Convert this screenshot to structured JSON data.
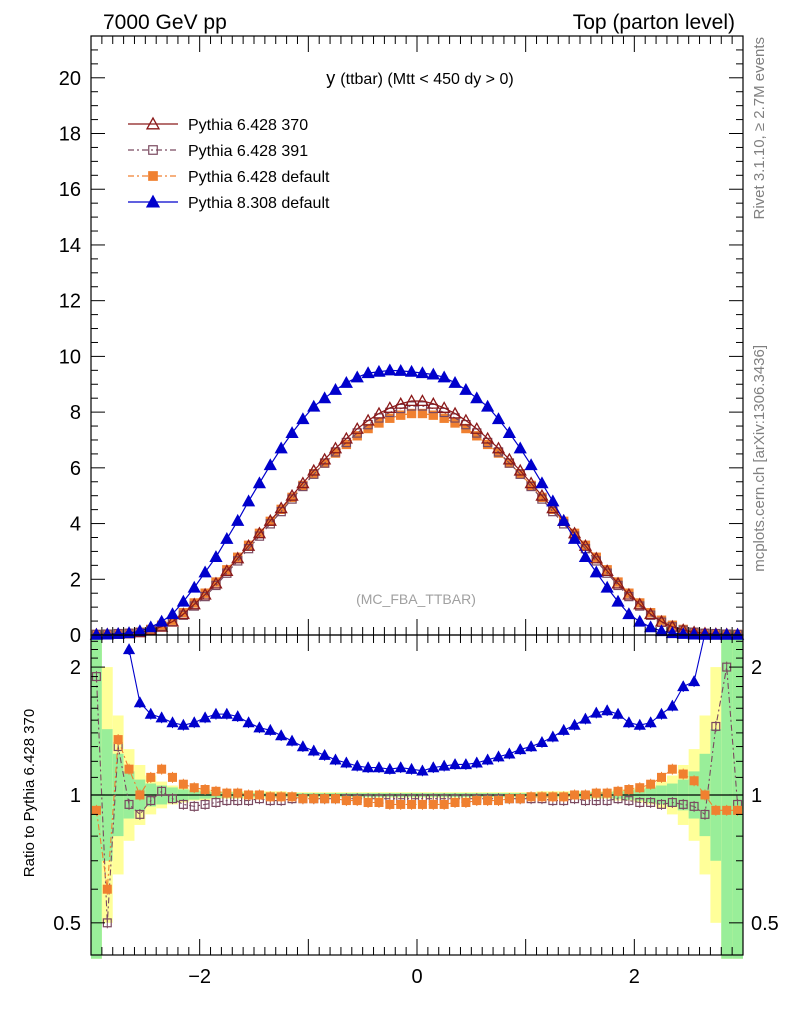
{
  "header": {
    "left": "7000 GeV pp",
    "right": "Top (parton level)"
  },
  "side_labels": {
    "rivet": "Rivet 3.1.10, ≥ 2.7M events",
    "mcplots": "mcplots.cern.ch [arXiv:1306.3436]"
  },
  "chart_data": {
    "type": "line",
    "title_main": "y",
    "title_rest": "(ttbar) (Mtt < 450 dy > 0)",
    "watermark": "(MC_FBA_TTBAR)",
    "ylabel_ratio": "Ratio to Pythia 6.428 370",
    "grid": false,
    "legend_position": "top-left",
    "xlim": [
      -3.0,
      3.0
    ],
    "ylim_main": [
      0,
      21.5
    ],
    "ylim_ratio": [
      0.42,
      2.38
    ],
    "ratio_log_scale": true,
    "main_yticks": [
      "0",
      "2",
      "4",
      "6",
      "8",
      "10",
      "12",
      "14",
      "16",
      "18",
      "20"
    ],
    "ratio_yticks": [
      "0.5",
      "1",
      "2"
    ],
    "xticks": [
      "−2",
      "0",
      "2"
    ],
    "x": [
      -2.95,
      -2.85,
      -2.75,
      -2.65,
      -2.55,
      -2.45,
      -2.35,
      -2.25,
      -2.15,
      -2.05,
      -1.95,
      -1.85,
      -1.75,
      -1.65,
      -1.55,
      -1.45,
      -1.35,
      -1.25,
      -1.15,
      -1.05,
      -0.95,
      -0.85,
      -0.75,
      -0.65,
      -0.55,
      -0.45,
      -0.35,
      -0.25,
      -0.15,
      -0.05,
      0.05,
      0.15,
      0.25,
      0.35,
      0.45,
      0.55,
      0.65,
      0.75,
      0.85,
      0.95,
      1.05,
      1.15,
      1.25,
      1.35,
      1.45,
      1.55,
      1.65,
      1.75,
      1.85,
      1.95,
      2.05,
      2.15,
      2.25,
      2.35,
      2.45,
      2.55,
      2.65,
      2.75,
      2.85,
      2.95
    ],
    "series": [
      {
        "name": "Pythia 6.428 370",
        "color": "#8b1a1a",
        "marker": "open-triangle",
        "values": [
          0.02,
          0.03,
          0.04,
          0.06,
          0.1,
          0.18,
          0.3,
          0.48,
          0.75,
          1.1,
          1.45,
          1.85,
          2.3,
          2.75,
          3.2,
          3.65,
          4.1,
          4.55,
          5.0,
          5.45,
          5.9,
          6.3,
          6.7,
          7.05,
          7.4,
          7.7,
          7.95,
          8.15,
          8.3,
          8.4,
          8.4,
          8.3,
          8.15,
          7.95,
          7.7,
          7.4,
          7.05,
          6.7,
          6.3,
          5.9,
          5.45,
          5.0,
          4.55,
          4.1,
          3.65,
          3.2,
          2.75,
          2.3,
          1.85,
          1.45,
          1.1,
          0.75,
          0.48,
          0.3,
          0.18,
          0.1,
          0.06,
          0.04,
          0.03,
          0.02
        ]
      },
      {
        "name": "Pythia 6.428 391",
        "color": "#7a4a60",
        "marker": "open-square",
        "values": [
          0.02,
          0.03,
          0.05,
          0.06,
          0.09,
          0.17,
          0.31,
          0.48,
          0.71,
          1.04,
          1.38,
          1.78,
          2.22,
          2.66,
          3.1,
          3.55,
          3.99,
          4.43,
          4.88,
          5.33,
          5.77,
          6.17,
          6.57,
          6.91,
          7.25,
          7.55,
          7.79,
          7.99,
          8.13,
          8.22,
          8.22,
          8.13,
          7.99,
          7.79,
          7.55,
          7.25,
          6.91,
          6.57,
          6.17,
          5.77,
          5.33,
          4.88,
          4.43,
          3.99,
          3.55,
          3.1,
          2.66,
          2.22,
          1.78,
          1.38,
          1.04,
          0.71,
          0.46,
          0.29,
          0.17,
          0.1,
          0.06,
          0.05,
          0.03,
          0.02
        ]
      },
      {
        "name": "Pythia 6.428 default",
        "color": "#f08030",
        "marker": "filled-square",
        "values": [
          0.02,
          0.03,
          0.04,
          0.06,
          0.1,
          0.2,
          0.35,
          0.53,
          0.8,
          1.15,
          1.5,
          1.9,
          2.34,
          2.79,
          3.22,
          3.65,
          4.08,
          4.51,
          4.94,
          5.37,
          5.79,
          6.17,
          6.53,
          6.84,
          7.15,
          7.41,
          7.61,
          7.78,
          7.89,
          7.95,
          7.95,
          7.89,
          7.78,
          7.61,
          7.41,
          7.15,
          6.84,
          6.53,
          6.17,
          5.79,
          5.37,
          4.94,
          4.51,
          4.08,
          3.65,
          3.22,
          2.79,
          2.34,
          1.9,
          1.5,
          1.15,
          0.8,
          0.53,
          0.35,
          0.2,
          0.1,
          0.06,
          0.04,
          0.03,
          0.02
        ]
      },
      {
        "name": "Pythia 8.308 default",
        "color": "#0000cc",
        "marker": "filled-triangle",
        "values": [
          0.01,
          0.02,
          0.04,
          0.07,
          0.14,
          0.28,
          0.48,
          0.75,
          1.2,
          1.7,
          2.25,
          2.8,
          3.45,
          4.1,
          4.8,
          5.45,
          6.1,
          6.7,
          7.25,
          7.75,
          8.2,
          8.5,
          8.8,
          9.05,
          9.25,
          9.4,
          9.45,
          9.5,
          9.48,
          9.45,
          9.4,
          9.35,
          9.25,
          9.05,
          8.8,
          8.5,
          8.2,
          7.75,
          7.25,
          6.7,
          6.1,
          5.45,
          4.8,
          4.1,
          3.45,
          2.8,
          2.25,
          1.7,
          1.2,
          0.75,
          0.48,
          0.28,
          0.14,
          0.07,
          0.04,
          0.02,
          0.01,
          0.01,
          0.01,
          0.01
        ]
      }
    ],
    "ratio_series": [
      {
        "name": "Pythia 6.428 391",
        "values": [
          1.9,
          0.5,
          1.3,
          0.95,
          0.9,
          0.97,
          1.02,
          0.98,
          0.95,
          0.94,
          0.95,
          0.96,
          0.97,
          0.97,
          0.97,
          0.98,
          0.97,
          0.97,
          0.98,
          0.98,
          0.98,
          0.98,
          0.98,
          0.98,
          0.98,
          0.98,
          0.98,
          0.98,
          0.98,
          0.98,
          0.98,
          0.98,
          0.98,
          0.98,
          0.98,
          0.98,
          0.98,
          0.98,
          0.98,
          0.98,
          0.98,
          0.98,
          0.97,
          0.97,
          0.98,
          0.97,
          0.97,
          0.97,
          0.98,
          0.97,
          0.96,
          0.96,
          0.95,
          0.96,
          0.95,
          0.94,
          0.9,
          1.45,
          2.0,
          0.95
        ]
      },
      {
        "name": "Pythia 6.428 default",
        "values": [
          0.92,
          0.6,
          1.35,
          1.15,
          1.0,
          1.1,
          1.15,
          1.1,
          1.06,
          1.04,
          1.03,
          1.02,
          1.01,
          1.01,
          1.0,
          1.0,
          0.99,
          0.99,
          0.99,
          0.98,
          0.98,
          0.98,
          0.98,
          0.97,
          0.97,
          0.96,
          0.96,
          0.95,
          0.95,
          0.95,
          0.95,
          0.95,
          0.95,
          0.96,
          0.96,
          0.97,
          0.97,
          0.97,
          0.98,
          0.98,
          0.99,
          0.99,
          0.99,
          0.99,
          1.0,
          1.0,
          1.01,
          1.01,
          1.02,
          1.03,
          1.04,
          1.06,
          1.1,
          1.15,
          1.12,
          1.08,
          1.0,
          0.92,
          0.92,
          0.92
        ]
      },
      {
        "name": "Pythia 8.308 default",
        "values": [
          null,
          null,
          null,
          2.2,
          1.65,
          1.55,
          1.52,
          1.48,
          1.46,
          1.48,
          1.52,
          1.55,
          1.55,
          1.53,
          1.48,
          1.44,
          1.42,
          1.38,
          1.34,
          1.3,
          1.27,
          1.24,
          1.21,
          1.19,
          1.17,
          1.16,
          1.16,
          1.15,
          1.16,
          1.15,
          1.14,
          1.16,
          1.17,
          1.18,
          1.18,
          1.19,
          1.21,
          1.23,
          1.25,
          1.28,
          1.3,
          1.33,
          1.37,
          1.42,
          1.46,
          1.51,
          1.56,
          1.58,
          1.55,
          1.48,
          1.46,
          1.48,
          1.55,
          1.62,
          1.8,
          1.85,
          2.4,
          null,
          null,
          null
        ]
      }
    ],
    "ratio_band_outer": [
      0.3,
      0.5,
      0.65,
      0.78,
      0.85,
      0.9,
      0.93,
      0.95,
      0.96,
      0.97,
      0.97,
      0.98,
      0.98,
      0.98,
      0.98,
      0.98,
      0.98,
      0.98,
      0.985,
      0.985,
      0.985,
      0.985,
      0.985,
      0.985,
      0.985,
      0.985,
      0.985,
      0.985,
      0.985,
      0.985,
      0.985,
      0.985,
      0.985,
      0.985,
      0.985,
      0.985,
      0.985,
      0.985,
      0.985,
      0.985,
      0.985,
      0.98,
      0.98,
      0.98,
      0.98,
      0.98,
      0.98,
      0.98,
      0.97,
      0.97,
      0.96,
      0.95,
      0.93,
      0.9,
      0.85,
      0.78,
      0.65,
      0.5,
      0.3,
      0.3
    ],
    "ratio_band_inner": [
      0.35,
      0.7,
      0.8,
      0.88,
      0.92,
      0.94,
      0.95,
      0.96,
      0.97,
      0.975,
      0.98,
      0.985,
      0.985,
      0.985,
      0.99,
      0.99,
      0.99,
      0.99,
      0.99,
      0.99,
      0.99,
      0.99,
      0.99,
      0.99,
      0.99,
      0.99,
      0.99,
      0.99,
      0.99,
      0.99,
      0.99,
      0.99,
      0.99,
      0.99,
      0.99,
      0.99,
      0.99,
      0.99,
      0.99,
      0.99,
      0.99,
      0.99,
      0.99,
      0.99,
      0.99,
      0.985,
      0.985,
      0.985,
      0.98,
      0.975,
      0.97,
      0.96,
      0.95,
      0.94,
      0.92,
      0.88,
      0.8,
      0.7,
      0.35,
      0.35
    ]
  }
}
